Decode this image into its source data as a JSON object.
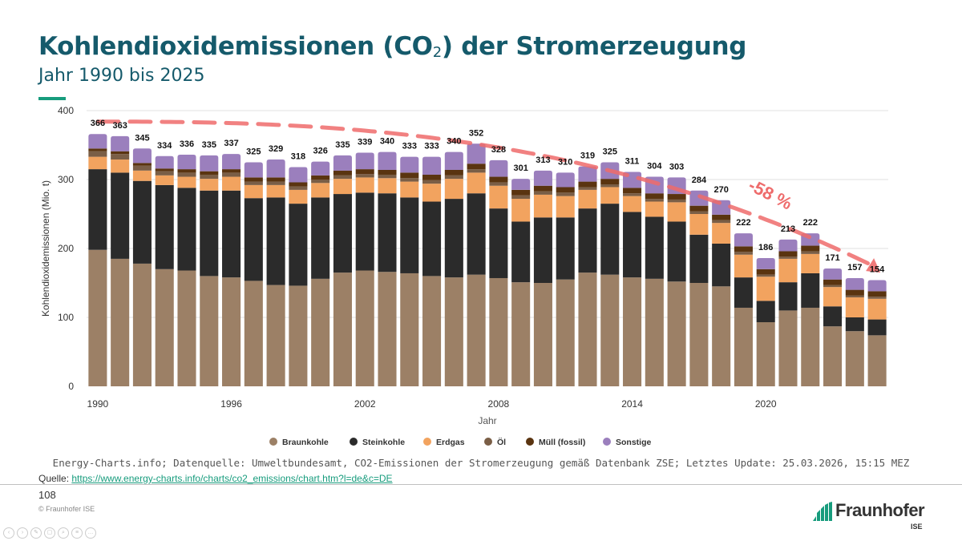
{
  "header": {
    "title_main": "Kohlendioxidemissionen (CO",
    "title_sub": "2",
    "title_rest": ") der Stromerzeugung",
    "subtitle": "Jahr 1990 bis 2025"
  },
  "chart_data": {
    "type": "bar",
    "stacked": true,
    "x": [
      1990,
      1991,
      1992,
      1993,
      1994,
      1995,
      1996,
      1997,
      1998,
      1999,
      2000,
      2001,
      2002,
      2003,
      2004,
      2005,
      2006,
      2007,
      2008,
      2009,
      2010,
      2011,
      2012,
      2013,
      2014,
      2015,
      2016,
      2017,
      2018,
      2019,
      2020,
      2021,
      2022,
      2023,
      2024,
      2025
    ],
    "totals": [
      366,
      363,
      345,
      334,
      336,
      335,
      337,
      325,
      329,
      318,
      326,
      335,
      339,
      340,
      333,
      333,
      340,
      352,
      328,
      301,
      313,
      310,
      319,
      325,
      311,
      304,
      303,
      284,
      270,
      222,
      186,
      213,
      222,
      171,
      157,
      154
    ],
    "series": [
      {
        "name": "Braunkohle",
        "color": "#9c8066",
        "values": [
          198,
          185,
          178,
          170,
          168,
          160,
          158,
          153,
          147,
          146,
          156,
          165,
          168,
          166,
          164,
          160,
          158,
          162,
          157,
          151,
          150,
          155,
          165,
          162,
          158,
          156,
          152,
          150,
          145,
          114,
          93,
          110,
          114,
          87,
          80,
          74
        ]
      },
      {
        "name": "Steinkohle",
        "color": "#2b2b2b",
        "values": [
          117,
          125,
          120,
          122,
          120,
          124,
          126,
          120,
          127,
          119,
          118,
          114,
          113,
          114,
          110,
          108,
          114,
          118,
          101,
          88,
          95,
          90,
          93,
          103,
          95,
          90,
          87,
          70,
          62,
          44,
          31,
          41,
          50,
          29,
          20,
          23
        ]
      },
      {
        "name": "Erdgas",
        "color": "#f2a35f",
        "values": [
          18,
          19,
          15,
          14,
          16,
          17,
          20,
          19,
          18,
          20,
          21,
          22,
          22,
          22,
          23,
          26,
          29,
          30,
          33,
          33,
          33,
          31,
          27,
          24,
          23,
          22,
          28,
          30,
          30,
          33,
          35,
          34,
          28,
          28,
          29,
          30
        ]
      },
      {
        "name": "Öl",
        "color": "#7a5e46",
        "values": [
          8,
          8,
          7,
          6,
          6,
          6,
          6,
          5,
          5,
          5,
          5,
          5,
          5,
          5,
          5,
          5,
          5,
          5,
          5,
          5,
          5,
          5,
          4,
          4,
          4,
          4,
          4,
          4,
          4,
          4,
          3,
          3,
          4,
          3,
          3,
          3
        ]
      },
      {
        "name": "Müll (fossil)",
        "color": "#5a3410",
        "values": [
          4,
          4,
          4,
          4,
          5,
          5,
          5,
          6,
          6,
          6,
          6,
          7,
          7,
          7,
          8,
          8,
          8,
          8,
          8,
          8,
          8,
          8,
          8,
          8,
          8,
          8,
          8,
          8,
          8,
          8,
          8,
          8,
          8,
          8,
          8,
          8
        ]
      },
      {
        "name": "Sonstige",
        "color": "#9b7fbd",
        "values": [
          21,
          22,
          21,
          18,
          21,
          23,
          22,
          22,
          26,
          22,
          20,
          22,
          24,
          26,
          23,
          26,
          26,
          29,
          24,
          16,
          22,
          21,
          22,
          24,
          23,
          24,
          24,
          22,
          21,
          19,
          16,
          17,
          18,
          16,
          17,
          16
        ]
      }
    ],
    "xlabel": "Jahr",
    "ylabel": "Kohlendioxidemissionen (Mio. t)",
    "ylim": [
      0,
      400
    ],
    "yticks": [
      0,
      100,
      200,
      300,
      400
    ],
    "xticks": [
      1990,
      1996,
      2002,
      2008,
      2014,
      2020
    ],
    "annotation": {
      "text": "-58 %",
      "color": "#ee6b6b"
    },
    "legend": "bottom"
  },
  "footer": {
    "source_note": "Energy-Charts.info; Datenquelle: Umweltbundesamt, CO2-Emissionen der Stromerzeugung gemäß Datenbank ZSE; Letztes Update: 25.03.2026, 15:15 MEZ",
    "quelle_label": "Quelle: ",
    "quelle_url": "https://www.energy-charts.info/charts/co2_emissions/chart.htm?l=de&c=DE",
    "page_number": "108",
    "copyright": "© Fraunhofer ISE",
    "logo_name": "Fraunhofer",
    "logo_sub": "ISE"
  }
}
